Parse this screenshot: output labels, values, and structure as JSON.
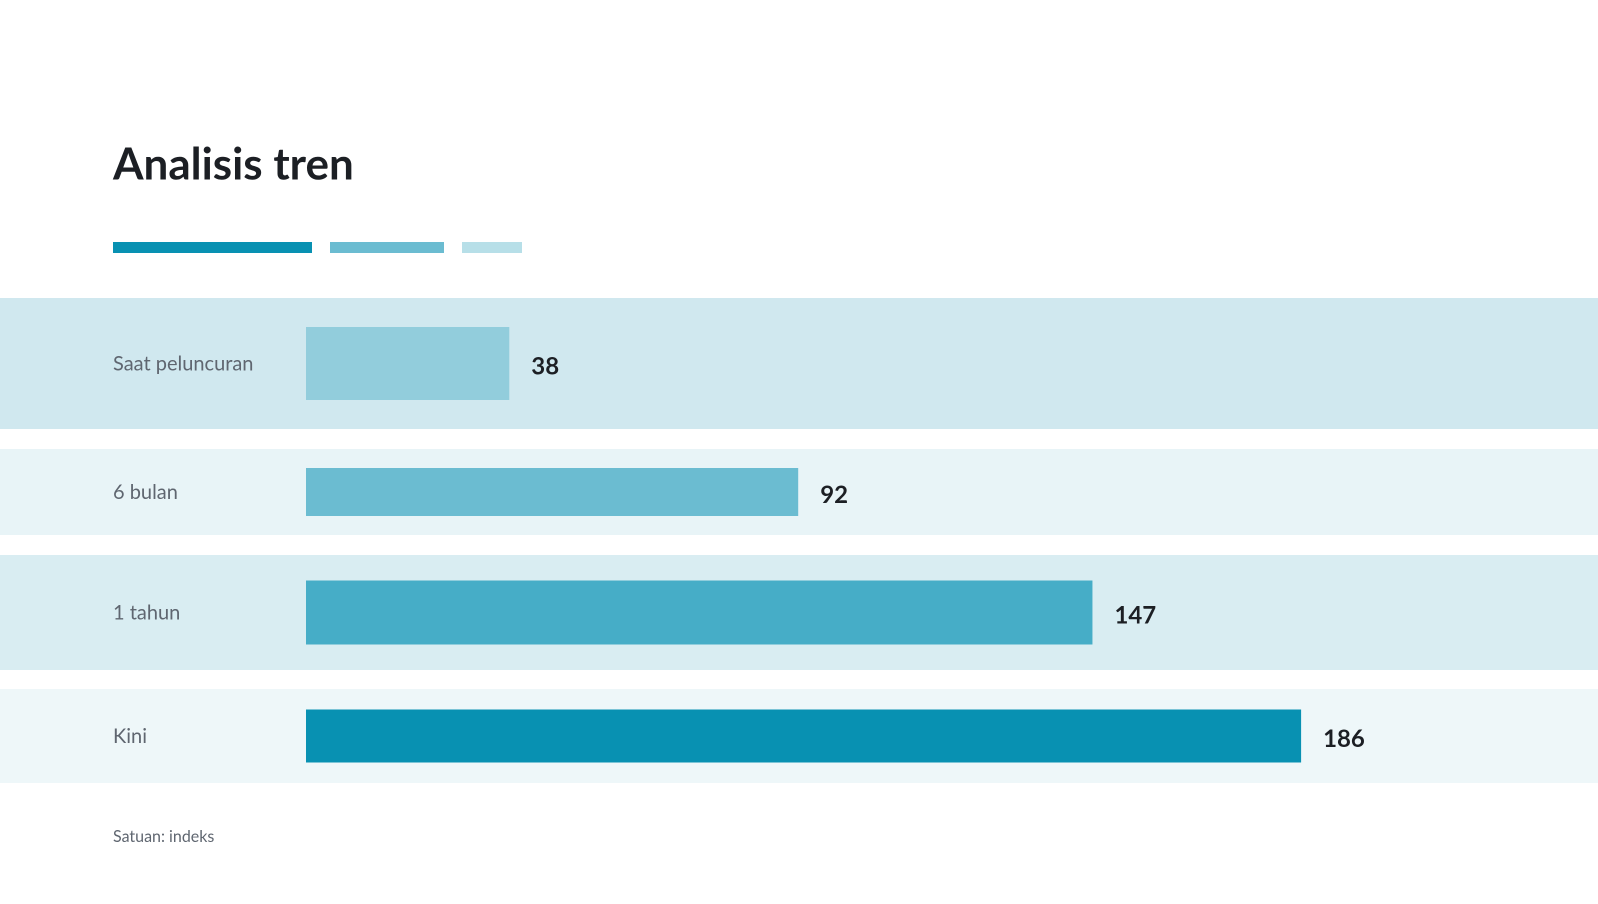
{
  "chart_data": {
    "type": "hbar",
    "title": "Analisis tren",
    "categories": [
      "Saat peluncuran",
      "6 bulan",
      "1 tahun",
      "Kini"
    ],
    "values": [
      38,
      92,
      147,
      186
    ],
    "colors": [
      "#92cddc",
      "#6bbcd1",
      "#46adc7",
      "#0891b2"
    ],
    "note": "Satuan: indeks"
  }
}
